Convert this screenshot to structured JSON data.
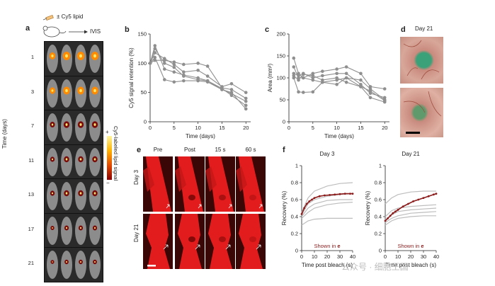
{
  "panels": {
    "a": {
      "label": "a",
      "legend": "± Cy5 lipid",
      "device": "IVIS",
      "y_label": "Time (days)",
      "days": [
        "1",
        "3",
        "7",
        "11",
        "13",
        "17",
        "21"
      ],
      "colorbar_label": "Cy5-labeled lipid signal",
      "colorbar_plus": "+",
      "colorbar_minus": "−",
      "colors": {
        "hot": "#ff8a00",
        "core": "#ffe86a",
        "dark": "#7a0b0b"
      }
    },
    "b": {
      "label": "b"
    },
    "c": {
      "label": "c"
    },
    "d": {
      "label": "d",
      "title": "Day 21"
    },
    "e": {
      "label": "e",
      "cols": [
        "Pre",
        "Post",
        "15 s",
        "60 s"
      ],
      "rows": [
        "Day 3",
        "Day 21"
      ],
      "colors": {
        "red": "#e21c1c",
        "bg": "#3a0606"
      }
    },
    "f": {
      "label": "f",
      "highlight_text": "Shown in",
      "highlight_ref": "e",
      "colors": {
        "highlight": "#8c1b1b",
        "gray": "#bdbdbd"
      }
    }
  },
  "watermark": "公众号 · 细胞王国",
  "chart_data": [
    {
      "id": "b",
      "type": "line",
      "xlabel": "Time (days)",
      "ylabel": "Cy5 signal retention (%)",
      "xlim": [
        0,
        21
      ],
      "ylim": [
        0,
        150
      ],
      "xticks": [
        0,
        5,
        10,
        15,
        20
      ],
      "yticks": [
        0,
        50,
        100,
        150
      ],
      "series": [
        {
          "x": [
            0,
            1,
            3,
            5,
            7,
            10,
            12,
            15,
            17,
            20
          ],
          "y": [
            100,
            130,
            90,
            85,
            80,
            75,
            70,
            55,
            48,
            35
          ]
        },
        {
          "x": [
            0,
            1,
            3,
            5,
            7,
            10,
            12,
            15,
            17,
            20
          ],
          "y": [
            100,
            118,
            108,
            98,
            85,
            88,
            78,
            60,
            65,
            50
          ]
        },
        {
          "x": [
            0,
            1,
            3,
            5,
            7,
            10,
            12,
            15,
            17,
            20
          ],
          "y": [
            100,
            125,
            100,
            93,
            78,
            72,
            70,
            57,
            45,
            28
          ]
        },
        {
          "x": [
            0,
            1,
            3,
            5,
            7,
            10,
            12,
            15,
            17,
            20
          ],
          "y": [
            100,
            110,
            72,
            68,
            70,
            70,
            68,
            55,
            50,
            22
          ]
        },
        {
          "x": [
            0,
            1,
            3,
            5,
            7,
            10,
            12,
            15,
            17,
            20
          ],
          "y": [
            100,
            105,
            105,
            102,
            98,
            100,
            95,
            58,
            55,
            40
          ]
        }
      ]
    },
    {
      "id": "c",
      "type": "line",
      "xlabel": "Time (days)",
      "ylabel": "Area (mm²)",
      "xlim": [
        0,
        21
      ],
      "ylim": [
        0,
        200
      ],
      "xticks": [
        0,
        5,
        10,
        15,
        20
      ],
      "yticks": [
        0,
        50,
        100,
        150,
        200
      ],
      "series": [
        {
          "x": [
            1,
            2,
            3,
            5,
            7,
            10,
            12,
            15,
            17,
            20
          ],
          "y": [
            145,
            110,
            100,
            110,
            115,
            120,
            125,
            110,
            80,
            75
          ]
        },
        {
          "x": [
            1,
            2,
            3,
            5,
            7,
            10,
            12,
            15,
            17,
            20
          ],
          "y": [
            125,
            100,
            100,
            95,
            90,
            85,
            100,
            95,
            75,
            50
          ]
        },
        {
          "x": [
            1,
            2,
            3,
            5,
            7,
            10,
            12,
            15,
            17,
            20
          ],
          "y": [
            100,
            68,
            67,
            68,
            90,
            95,
            100,
            80,
            55,
            45
          ]
        },
        {
          "x": [
            1,
            2,
            3,
            5,
            7,
            10,
            12,
            15,
            17,
            20
          ],
          "y": [
            110,
            105,
            110,
            100,
            105,
            110,
            110,
            85,
            65,
            55
          ]
        },
        {
          "x": [
            1,
            2,
            3,
            5,
            7,
            10,
            12,
            15,
            17,
            20
          ],
          "y": [
            105,
            95,
            108,
            105,
            95,
            100,
            90,
            80,
            70,
            48
          ]
        }
      ]
    },
    {
      "id": "f-day3",
      "type": "line",
      "title": "Day 3",
      "xlabel": "Time post bleach (s)",
      "ylabel": "Recovery (%)",
      "xlim": [
        0,
        40
      ],
      "ylim": [
        0,
        1
      ],
      "xticks": [
        0,
        10,
        20,
        30,
        40
      ],
      "yticks": [
        0,
        0.2,
        0.4,
        0.6,
        0.8,
        1.0
      ],
      "series": [
        {
          "x": [
            0,
            5,
            10,
            20,
            30,
            40
          ],
          "y": [
            0.45,
            0.62,
            0.7,
            0.76,
            0.79,
            0.8
          ]
        },
        {
          "x": [
            0,
            5,
            10,
            20,
            30,
            40
          ],
          "y": [
            0.42,
            0.55,
            0.6,
            0.64,
            0.66,
            0.67
          ]
        },
        {
          "x": [
            0,
            5,
            10,
            20,
            30,
            40
          ],
          "y": [
            0.4,
            0.5,
            0.55,
            0.59,
            0.6,
            0.6
          ]
        },
        {
          "x": [
            0,
            5,
            10,
            20,
            30,
            40
          ],
          "y": [
            0.38,
            0.45,
            0.5,
            0.54,
            0.56,
            0.57
          ]
        },
        {
          "x": [
            0,
            5,
            10,
            20,
            30,
            40
          ],
          "y": [
            0.3,
            0.35,
            0.37,
            0.38,
            0.38,
            0.38
          ]
        }
      ],
      "highlight": {
        "x": [
          0,
          2,
          4,
          6,
          8,
          10,
          14,
          18,
          22,
          26,
          30,
          34,
          38,
          40
        ],
        "y": [
          0.43,
          0.5,
          0.55,
          0.58,
          0.6,
          0.62,
          0.64,
          0.65,
          0.655,
          0.66,
          0.665,
          0.67,
          0.67,
          0.67
        ]
      }
    },
    {
      "id": "f-day21",
      "type": "line",
      "title": "Day 21",
      "xlabel": "Time post bleach (s)",
      "ylabel": "Recovery (%)",
      "xlim": [
        0,
        40
      ],
      "ylim": [
        0,
        1
      ],
      "xticks": [
        0,
        10,
        20,
        30,
        40
      ],
      "yticks": [
        0,
        0.2,
        0.4,
        0.6,
        0.8,
        1.0
      ],
      "series": [
        {
          "x": [
            0,
            5,
            10,
            20,
            30,
            40
          ],
          "y": [
            0.55,
            0.62,
            0.66,
            0.69,
            0.7,
            0.7
          ]
        },
        {
          "x": [
            0,
            5,
            10,
            20,
            30,
            40
          ],
          "y": [
            0.4,
            0.47,
            0.5,
            0.52,
            0.53,
            0.54
          ]
        },
        {
          "x": [
            0,
            5,
            10,
            20,
            30,
            40
          ],
          "y": [
            0.36,
            0.42,
            0.46,
            0.48,
            0.49,
            0.5
          ]
        },
        {
          "x": [
            0,
            5,
            10,
            20,
            30,
            40
          ],
          "y": [
            0.33,
            0.38,
            0.41,
            0.44,
            0.45,
            0.46
          ]
        },
        {
          "x": [
            0,
            5,
            10,
            20,
            30,
            40
          ],
          "y": [
            0.3,
            0.35,
            0.38,
            0.4,
            0.41,
            0.41
          ]
        }
      ],
      "highlight": {
        "x": [
          0,
          2,
          4,
          6,
          8,
          10,
          14,
          18,
          22,
          26,
          30,
          34,
          38,
          40
        ],
        "y": [
          0.35,
          0.38,
          0.41,
          0.44,
          0.46,
          0.48,
          0.52,
          0.55,
          0.58,
          0.6,
          0.62,
          0.64,
          0.66,
          0.67
        ]
      }
    }
  ]
}
